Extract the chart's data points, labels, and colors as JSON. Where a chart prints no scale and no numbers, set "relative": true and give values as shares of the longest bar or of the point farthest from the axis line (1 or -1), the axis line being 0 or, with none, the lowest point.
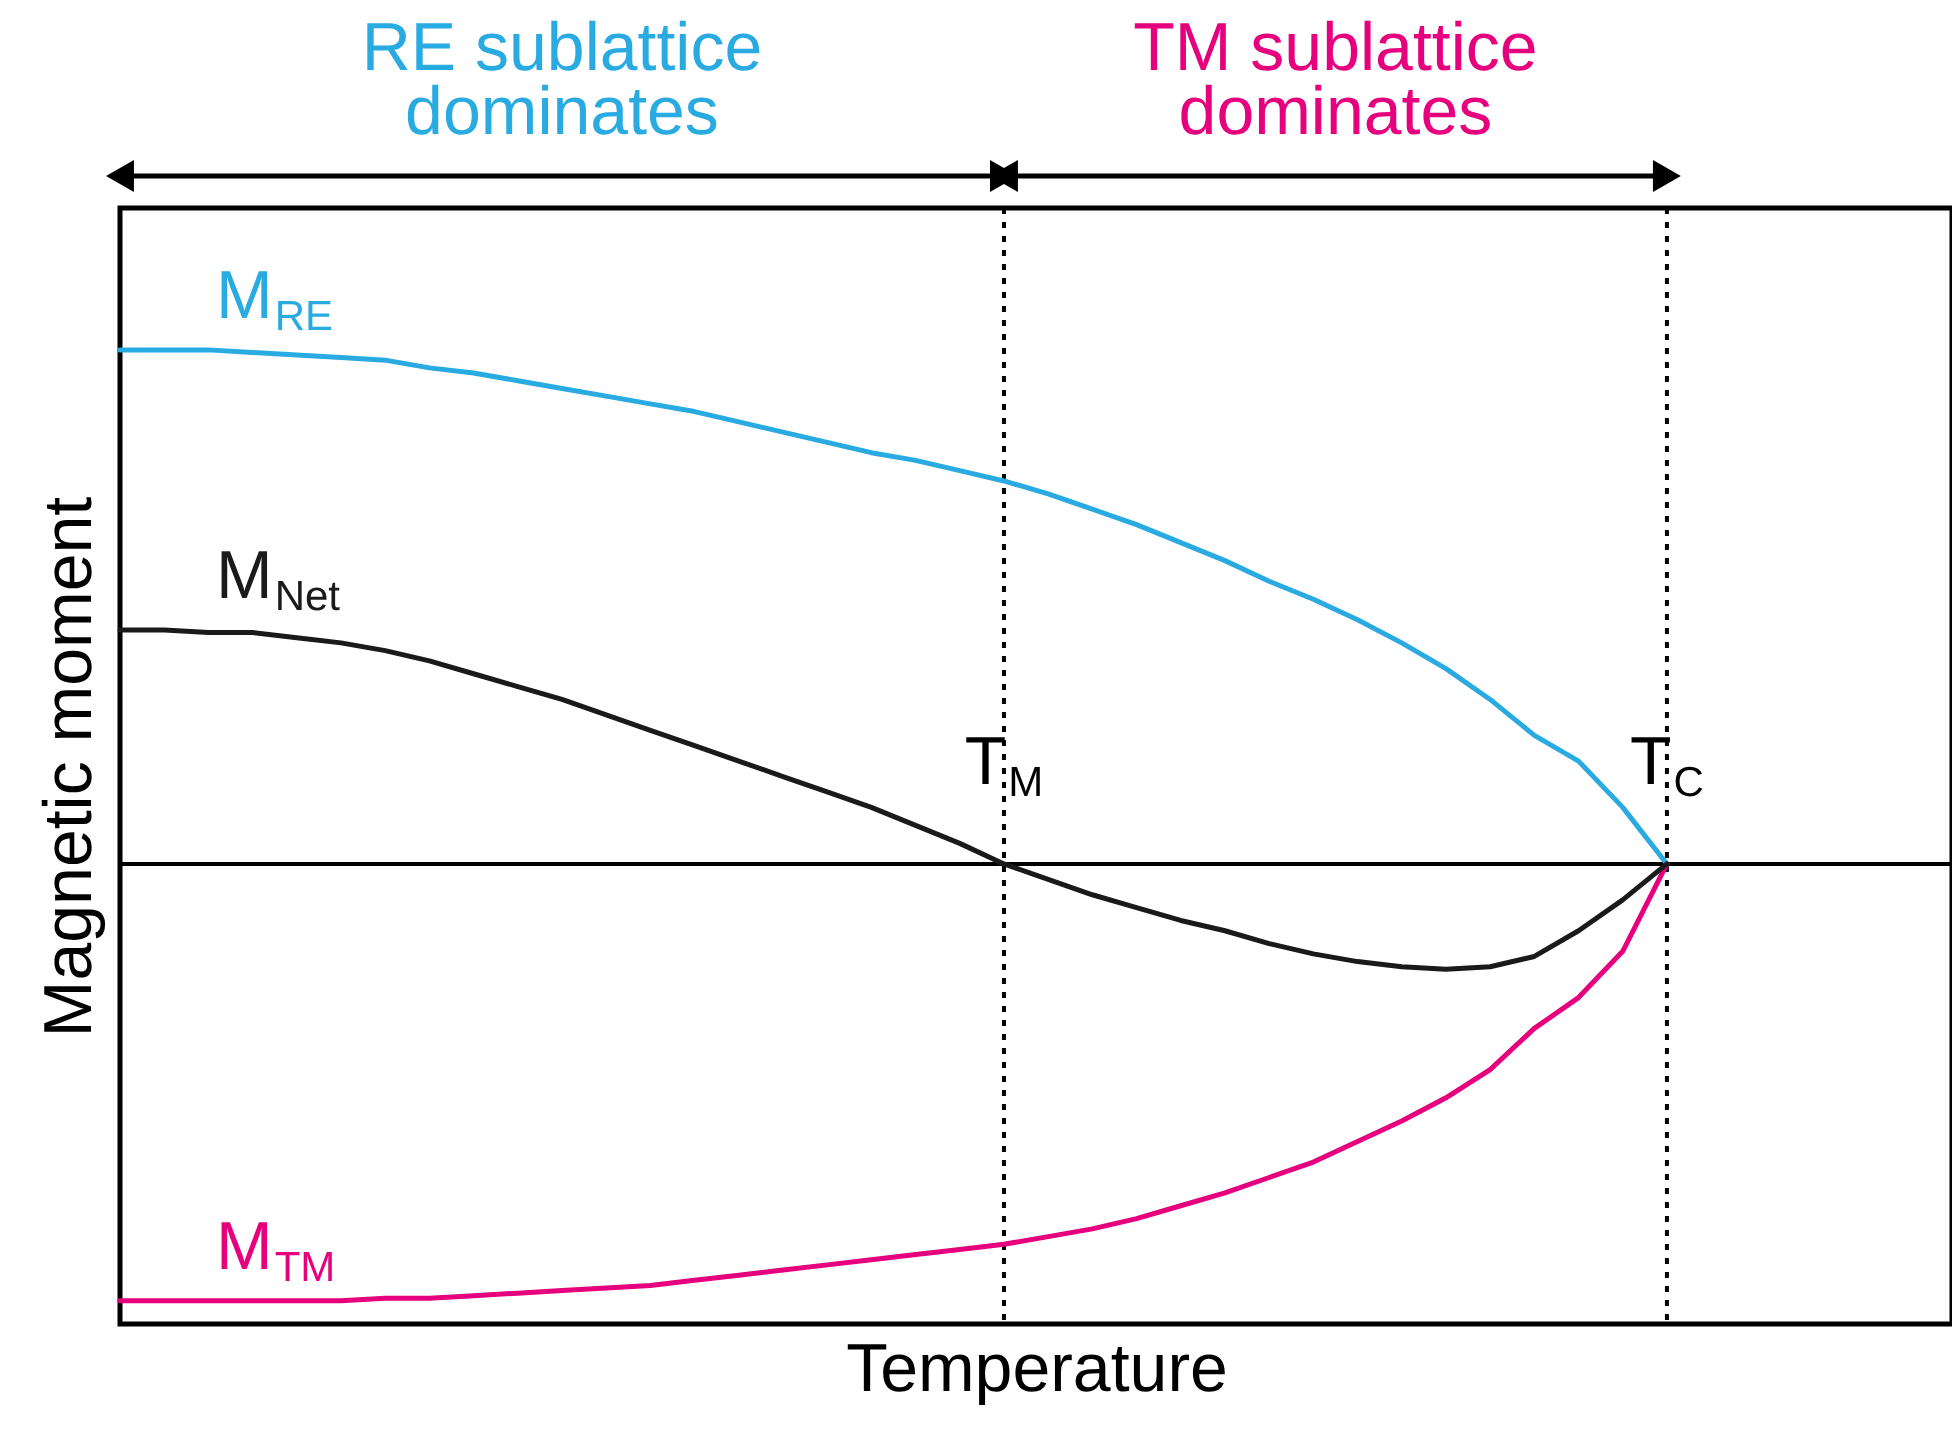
{
  "chart_data": {
    "type": "line",
    "relative": true,
    "xlabel": "Temperature",
    "ylabel": "Magnetic moment",
    "line_style": "solid",
    "categories": [
      null,
      null,
      null,
      null,
      null,
      null,
      null,
      null,
      null,
      null,
      null,
      null,
      null,
      null,
      null,
      null,
      null,
      null,
      null,
      null,
      "T$_{M}$",
      null,
      null,
      null,
      null,
      null,
      null,
      null,
      null,
      null,
      null,
      null,
      null,
      null,
      null,
      "T$_{C}$",
      null,
      null,
      null,
      null,
      null,
      null
    ],
    "series": [
      {
        "name": "M$_{RE}$",
        "color": "#29abe2",
        "values": [
          1.0,
          1.0,
          1.0,
          0.995,
          0.99,
          0.985,
          0.98,
          0.965,
          0.955,
          0.94,
          0.925,
          0.91,
          0.895,
          0.88,
          0.86,
          0.84,
          0.82,
          0.8,
          0.785,
          0.765,
          0.745,
          0.72,
          0.69,
          0.66,
          0.625,
          0.59,
          0.55,
          0.515,
          0.475,
          0.43,
          0.38,
          0.32,
          0.25,
          0.2,
          0.11,
          0,
          null,
          null,
          null,
          null,
          null,
          null
        ]
      },
      {
        "name": "M$_{TM}$",
        "color": "#e6007e",
        "values": [
          -0.85,
          -0.85,
          -0.85,
          -0.85,
          -0.85,
          -0.85,
          -0.845,
          -0.845,
          -0.84,
          -0.835,
          -0.83,
          -0.825,
          -0.82,
          -0.81,
          -0.8,
          -0.79,
          -0.78,
          -0.77,
          -0.76,
          -0.75,
          -0.74,
          -0.725,
          -0.71,
          -0.69,
          -0.665,
          -0.64,
          -0.61,
          -0.58,
          -0.54,
          -0.5,
          -0.455,
          -0.4,
          -0.32,
          -0.26,
          -0.17,
          0,
          null,
          null,
          null,
          null,
          null,
          null
        ]
      },
      {
        "name": "M$_{Net}$",
        "color": "#1a1a1a",
        "values": [
          0.455,
          0.455,
          0.45,
          0.45,
          0.44,
          0.43,
          0.415,
          0.395,
          0.37,
          0.345,
          0.32,
          0.29,
          0.26,
          0.23,
          0.2,
          0.17,
          0.14,
          0.11,
          0.075,
          0.04,
          0,
          -0.03,
          -0.06,
          -0.085,
          -0.11,
          -0.13,
          -0.155,
          -0.175,
          -0.19,
          -0.2,
          -0.205,
          -0.2,
          -0.18,
          -0.13,
          -0.07,
          0,
          null,
          null,
          null,
          null,
          null,
          null
        ]
      }
    ],
    "ref_lines": [
      {
        "axis": "x",
        "value": "T$_{M}$",
        "line_style": "dotted"
      },
      {
        "axis": "x",
        "value": "T$_{C}$",
        "line_style": "dotted"
      }
    ],
    "annotations": [
      "RE sublattice dominates",
      "TM sublattice dominates"
    ]
  }
}
